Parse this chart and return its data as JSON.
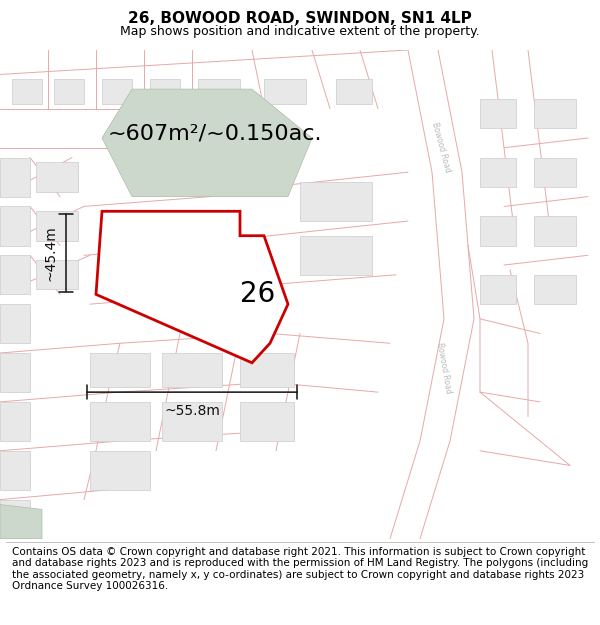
{
  "title": "26, BOWOOD ROAD, SWINDON, SN1 4LP",
  "subtitle": "Map shows position and indicative extent of the property.",
  "footer": "Contains OS data © Crown copyright and database right 2021. This information is subject to Crown copyright and database rights 2023 and is reproduced with the permission of HM Land Registry. The polygons (including the associated geometry, namely x, y co-ordinates) are subject to Crown copyright and database rights 2023 Ordnance Survey 100026316.",
  "area_label": "~607m²/~0.150ac.",
  "width_label": "~55.8m",
  "height_label": "~45.4m",
  "number_label": "26",
  "map_bg": "#f8f4f4",
  "road_line_color": "#e8a8a8",
  "building_fill": "#e8e8e8",
  "building_stroke": "#cccccc",
  "selected_fill": "#ffffff",
  "selected_stroke": "#cc0000",
  "green_fill": "#ccd8cc",
  "green_stroke": "#aabcaa",
  "road_label_color": "#bbbbbb",
  "dim_line_color": "#111111",
  "title_fontsize": 11,
  "subtitle_fontsize": 9,
  "footer_fontsize": 7.5,
  "area_label_fontsize": 16,
  "dim_label_fontsize": 10,
  "number_label_fontsize": 20
}
